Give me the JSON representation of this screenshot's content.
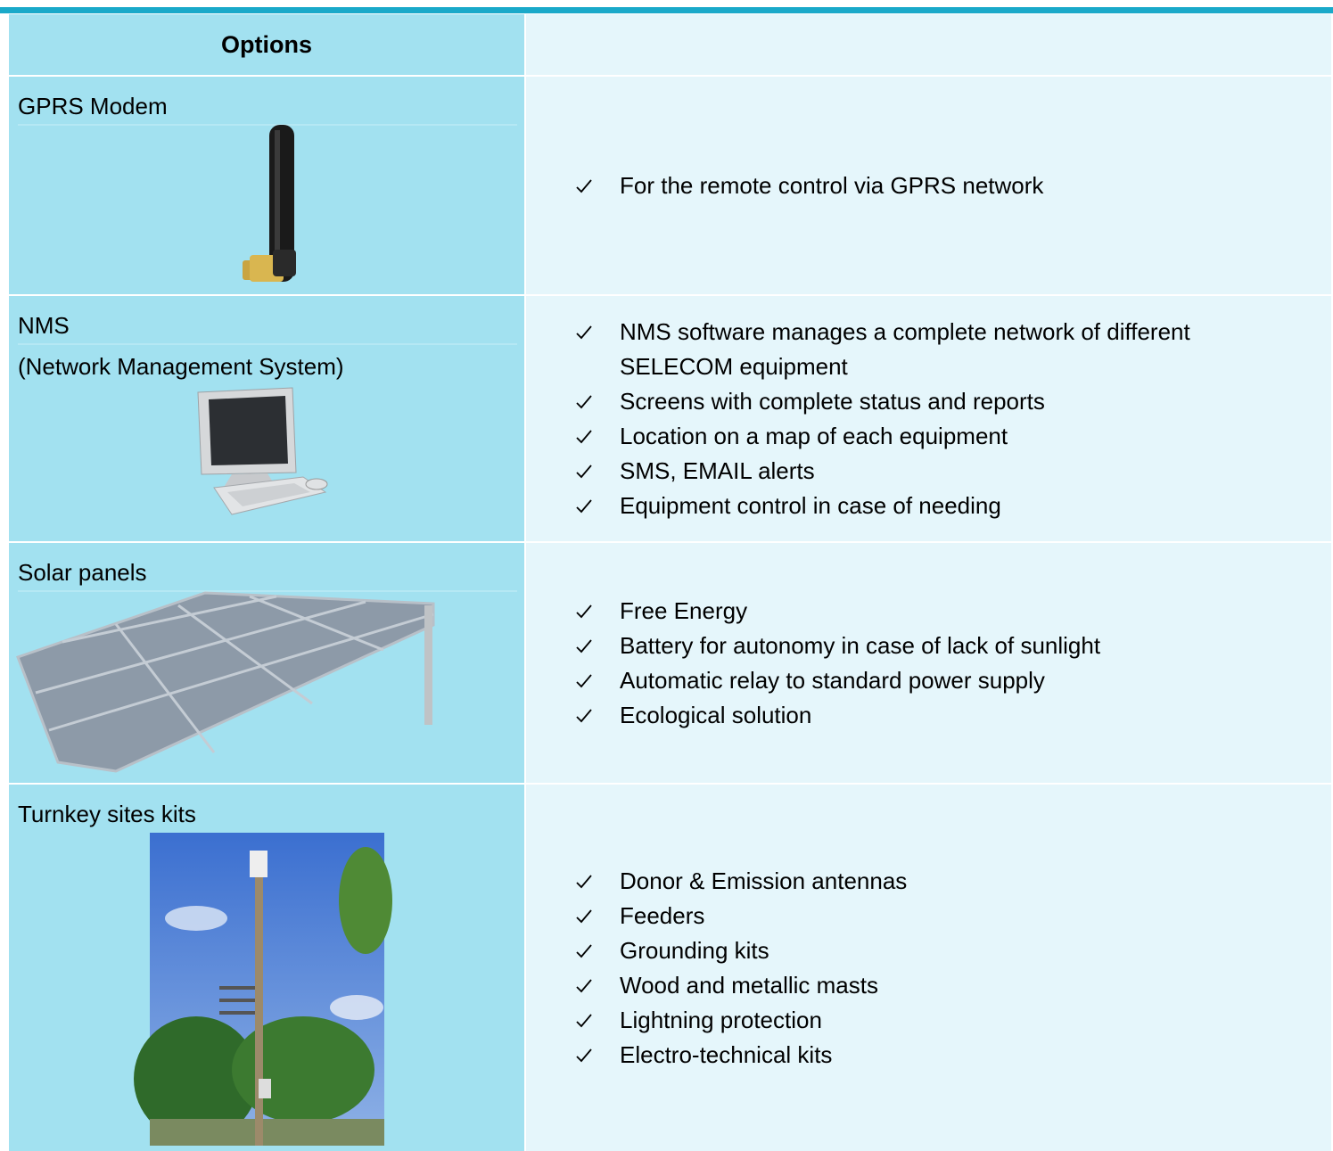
{
  "header": {
    "title": "Options"
  },
  "rows": [
    {
      "name": [
        "GPRS Modem"
      ],
      "bullets": [
        "For the remote control via GPRS network"
      ]
    },
    {
      "name": [
        "NMS",
        "(Network Management System)"
      ],
      "bullets": [
        "NMS software manages a complete network of different SELECOM equipment",
        "Screens with complete status and reports",
        "Location on a map of each equipment",
        "SMS, EMAIL alerts",
        "Equipment control in case of needing"
      ]
    },
    {
      "name": [
        "Solar panels"
      ],
      "bullets": [
        "Free Energy",
        "Battery for autonomy in case of lack of sunlight",
        "Automatic relay to standard power supply",
        "Ecological solution"
      ]
    },
    {
      "name": [
        "Turnkey sites kits"
      ],
      "bullets": [
        "Donor & Emission antennas",
        "Feeders",
        "Grounding kits",
        "Wood and metallic masts",
        "Lightning protection",
        "Electro-technical kits"
      ]
    }
  ]
}
